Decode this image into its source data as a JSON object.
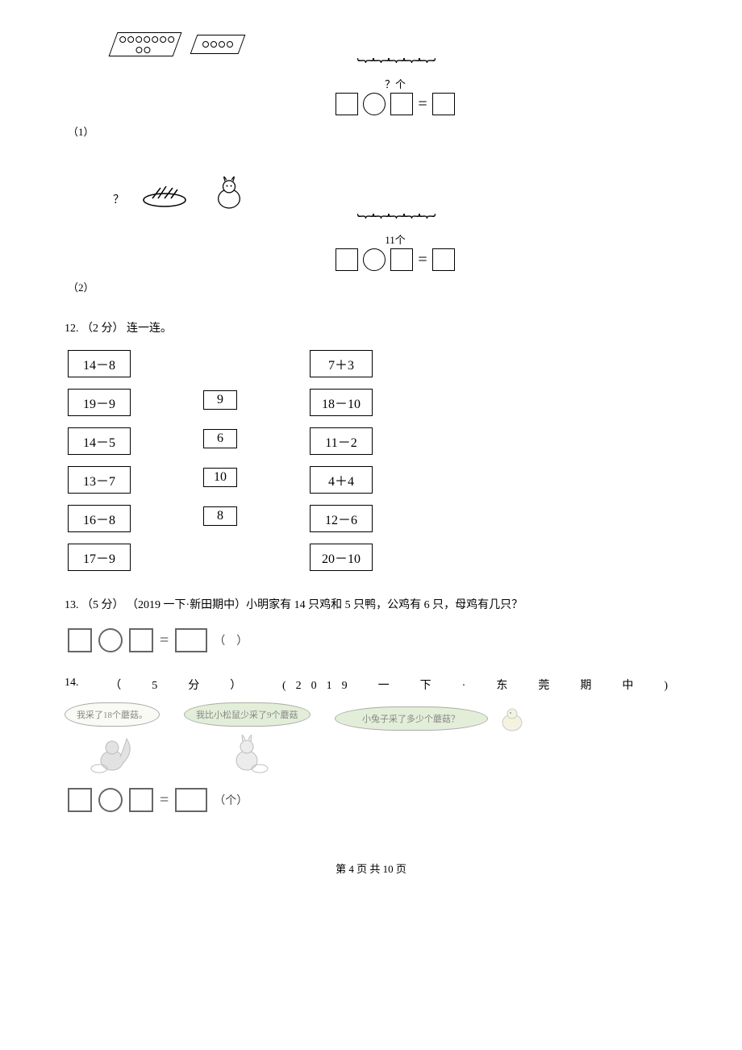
{
  "q1": {
    "label_prefix": "（1）",
    "under": "？个",
    "tray1_dots": 9,
    "tray2_dots": 4
  },
  "q2": {
    "label_prefix": "（2）",
    "under": "11个",
    "top_q": "？"
  },
  "q12": {
    "header": "12.  （2 分）  连一连。",
    "left": [
      "14－8",
      "19－9",
      "14－5",
      "13－7",
      "16－8",
      "17－9"
    ],
    "center": [
      "9",
      "6",
      "10",
      "8"
    ],
    "right": [
      "7＋3",
      "18－10",
      "11－2",
      "4＋4",
      "12－6",
      "20－10"
    ]
  },
  "q13": {
    "header": "13.  （5 分） （2019 一下·新田期中）小明家有 14 只鸡和 5 只鸭，公鸡有 6 只，母鸡有几只？",
    "eq_suffix": "（　）"
  },
  "q14": {
    "num": "14.",
    "points": "（　5　分　）",
    "source": "(2019　一　下　·　东　莞　期　中　)",
    "bubble1": "我采了18个蘑菇。",
    "bubble2": "我比小松鼠少采了9个蘑菇",
    "bubble3": "小兔子采了多少个蘑菇？",
    "eq_suffix": "（个）"
  },
  "footer": "第 4 页 共 10 页"
}
